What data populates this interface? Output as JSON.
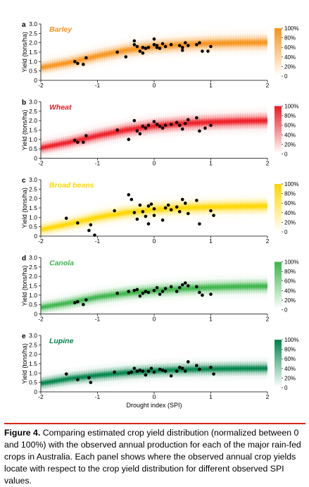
{
  "xlabel": "Drought index (SPI)",
  "ylabel": "Yield (tons/ha)",
  "colorbar_ticks": [
    "100%",
    "80%",
    "60%",
    "40%",
    "20%",
    "0"
  ],
  "caption": {
    "label": "Figure",
    "number": "4.",
    "text": "Comparing estimated crop yield distribution (normalized between 0 and 100%) with the observed annual production for each of the major rain-fed crops in Australia. Each panel shows where the observed annual crop yields locate with respect to the crop yield distribution for different observed SPI values."
  },
  "chart_data": [
    {
      "type": "scatter",
      "panel": "a",
      "title": "Barley",
      "color": "#f7941d",
      "xlim": [
        -2,
        2
      ],
      "ylim": [
        0,
        3
      ],
      "xticks": [
        -2,
        -1,
        0,
        1,
        2
      ],
      "yticks": [
        0,
        0.5,
        1.0,
        1.5,
        2.0,
        2.5,
        3.0
      ],
      "band_center": [
        [
          -2,
          0.68
        ],
        [
          -1.5,
          0.95
        ],
        [
          -1,
          1.3
        ],
        [
          -0.5,
          1.6
        ],
        [
          0,
          1.8
        ],
        [
          0.5,
          1.9
        ],
        [
          1,
          1.97
        ],
        [
          1.5,
          2.0
        ],
        [
          2,
          2.02
        ]
      ],
      "x": [
        -1.4,
        -1.35,
        -1.25,
        -1.2,
        -0.65,
        -0.5,
        -0.35,
        -0.35,
        -0.3,
        -0.25,
        -0.2,
        -0.2,
        -0.15,
        -0.1,
        0.0,
        0.0,
        0.05,
        0.05,
        0.1,
        0.15,
        0.2,
        0.3,
        0.45,
        0.5,
        0.5,
        0.55,
        0.6,
        0.75,
        0.8,
        0.85,
        0.95,
        1.0
      ],
      "y": [
        1.0,
        0.9,
        0.85,
        1.2,
        1.5,
        1.25,
        2.1,
        1.9,
        1.8,
        1.55,
        1.75,
        1.45,
        1.7,
        1.75,
        2.2,
        1.9,
        1.85,
        1.75,
        1.7,
        1.95,
        1.8,
        1.9,
        1.85,
        1.6,
        1.75,
        2.0,
        1.85,
        1.9,
        2.0,
        1.55,
        1.55,
        1.8
      ]
    },
    {
      "type": "scatter",
      "panel": "b",
      "title": "Wheat",
      "color": "#ed1c24",
      "xlim": [
        -2,
        2
      ],
      "ylim": [
        0,
        3
      ],
      "xticks": [
        -2,
        -1,
        0,
        1,
        2
      ],
      "yticks": [
        0,
        0.5,
        1.0,
        1.5,
        2.0,
        2.5,
        3.0
      ],
      "band_center": [
        [
          -2,
          0.55
        ],
        [
          -1.5,
          0.85
        ],
        [
          -1,
          1.2
        ],
        [
          -0.5,
          1.5
        ],
        [
          0,
          1.72
        ],
        [
          0.5,
          1.85
        ],
        [
          1,
          1.92
        ],
        [
          1.5,
          1.97
        ],
        [
          2,
          2.0
        ]
      ],
      "x": [
        -1.4,
        -1.35,
        -1.25,
        -1.2,
        -0.65,
        -0.45,
        -0.35,
        -0.3,
        -0.25,
        -0.2,
        -0.15,
        -0.1,
        0.0,
        0.05,
        0.1,
        0.15,
        0.2,
        0.3,
        0.4,
        0.45,
        0.5,
        0.55,
        0.6,
        0.75,
        0.8,
        0.9,
        1.0
      ],
      "y": [
        0.95,
        0.85,
        0.85,
        1.2,
        1.5,
        1.0,
        2.0,
        1.45,
        1.3,
        1.7,
        1.6,
        1.75,
        1.95,
        1.8,
        1.7,
        1.6,
        1.75,
        1.8,
        1.9,
        1.75,
        1.55,
        1.85,
        2.05,
        2.15,
        1.45,
        1.6,
        1.75
      ]
    },
    {
      "type": "scatter",
      "panel": "c",
      "title": "Broad beans",
      "color": "#ffd700",
      "xlim": [
        -2,
        2
      ],
      "ylim": [
        0,
        3
      ],
      "xticks": [
        -2,
        -1,
        0,
        1,
        2
      ],
      "yticks": [
        0,
        0.5,
        1.0,
        1.5,
        2.0,
        2.5,
        3.0
      ],
      "band_center": [
        [
          -2,
          0.35
        ],
        [
          -1.5,
          0.65
        ],
        [
          -1,
          1.0
        ],
        [
          -0.5,
          1.25
        ],
        [
          0,
          1.42
        ],
        [
          0.5,
          1.5
        ],
        [
          1,
          1.55
        ],
        [
          1.5,
          1.58
        ],
        [
          2,
          1.6
        ]
      ],
      "x": [
        -1.55,
        -1.35,
        -1.15,
        -1.12,
        -1.05,
        -0.7,
        -0.45,
        -0.4,
        -0.35,
        -0.3,
        -0.25,
        -0.2,
        -0.15,
        -0.1,
        -0.1,
        -0.05,
        0.0,
        0.0,
        0.15,
        0.2,
        0.25,
        0.3,
        0.4,
        0.45,
        0.5,
        0.55,
        0.6,
        0.75,
        0.8,
        1.0,
        1.05
      ],
      "y": [
        0.95,
        0.7,
        0.3,
        0.6,
        0.05,
        1.35,
        2.2,
        1.95,
        1.25,
        0.9,
        1.65,
        1.3,
        1.05,
        1.6,
        0.65,
        1.7,
        1.45,
        1.1,
        0.85,
        1.5,
        1.65,
        1.4,
        1.55,
        1.3,
        1.95,
        1.75,
        1.2,
        1.9,
        0.65,
        1.35,
        1.1
      ]
    },
    {
      "type": "scatter",
      "panel": "d",
      "title": "Canola",
      "color": "#3cb54a",
      "xlim": [
        -2,
        2
      ],
      "ylim": [
        0,
        3
      ],
      "xticks": [
        -2,
        -1,
        0,
        1,
        2
      ],
      "yticks": [
        0,
        0.5,
        1.0,
        1.5,
        2.0,
        2.5,
        3.0
      ],
      "band_center": [
        [
          -2,
          0.35
        ],
        [
          -1.5,
          0.6
        ],
        [
          -1,
          0.9
        ],
        [
          -0.5,
          1.1
        ],
        [
          0,
          1.25
        ],
        [
          0.5,
          1.35
        ],
        [
          1,
          1.42
        ],
        [
          1.5,
          1.46
        ],
        [
          2,
          1.48
        ]
      ],
      "x": [
        -1.4,
        -1.35,
        -1.25,
        -1.2,
        -0.65,
        -0.45,
        -0.35,
        -0.3,
        -0.25,
        -0.2,
        -0.15,
        -0.1,
        0.0,
        0.05,
        0.1,
        0.15,
        0.2,
        0.3,
        0.4,
        0.45,
        0.5,
        0.55,
        0.6,
        0.75,
        0.8,
        0.85,
        1.0
      ],
      "y": [
        0.6,
        0.65,
        0.5,
        0.75,
        1.1,
        1.2,
        1.25,
        1.3,
        0.95,
        1.1,
        1.2,
        1.15,
        1.25,
        1.4,
        1.05,
        1.2,
        1.35,
        1.45,
        1.2,
        1.4,
        1.55,
        1.65,
        1.5,
        1.45,
        1.15,
        1.0,
        1.05
      ]
    },
    {
      "type": "scatter",
      "panel": "e",
      "title": "Lupine",
      "color": "#00834a",
      "xlim": [
        -2,
        2
      ],
      "ylim": [
        0,
        3
      ],
      "xticks": [
        -2,
        -1,
        0,
        1,
        2
      ],
      "yticks": [
        0,
        0.5,
        1.0,
        1.5,
        2.0,
        2.5,
        3.0
      ],
      "band_center": [
        [
          -2,
          0.45
        ],
        [
          -1.5,
          0.7
        ],
        [
          -1,
          0.88
        ],
        [
          -0.5,
          1.02
        ],
        [
          0,
          1.12
        ],
        [
          0.5,
          1.18
        ],
        [
          1,
          1.22
        ],
        [
          1.5,
          1.24
        ],
        [
          2,
          1.25
        ]
      ],
      "x": [
        -1.55,
        -1.35,
        -1.15,
        -1.12,
        -0.7,
        -0.45,
        -0.4,
        -0.35,
        -0.3,
        -0.25,
        -0.2,
        -0.15,
        -0.1,
        -0.05,
        0.0,
        0.1,
        0.15,
        0.2,
        0.3,
        0.4,
        0.45,
        0.5,
        0.55,
        0.6,
        0.75,
        0.8,
        1.0,
        1.05
      ],
      "y": [
        0.95,
        0.65,
        0.75,
        0.5,
        1.05,
        1.0,
        1.05,
        1.25,
        1.1,
        1.15,
        1.1,
        0.9,
        1.1,
        1.25,
        1.05,
        1.2,
        1.15,
        1.1,
        0.85,
        1.1,
        1.3,
        1.25,
        1.1,
        1.6,
        1.4,
        1.2,
        1.3,
        0.95
      ]
    }
  ]
}
